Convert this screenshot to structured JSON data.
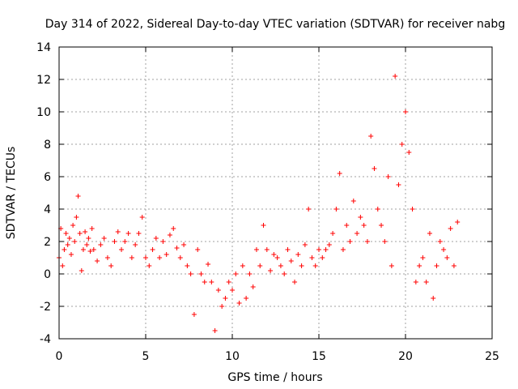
{
  "chart_data": {
    "type": "scatter",
    "title": "Day 314 of 2022, Sidereal Day-to-day VTEC variation (SDTVAR) for receiver nabg",
    "xlabel": "GPS time / hours",
    "ylabel": "SDTVAR / TECUs",
    "xlim": [
      0,
      25
    ],
    "ylim": [
      -4,
      14
    ],
    "xticks": [
      0,
      5,
      10,
      15,
      20,
      25
    ],
    "yticks": [
      -4,
      -2,
      0,
      2,
      4,
      6,
      8,
      10,
      12,
      14
    ],
    "grid": true,
    "marker": "plus",
    "color": "#ff0000",
    "series": [
      {
        "name": "nabg",
        "x": [
          0.0,
          0.1,
          0.2,
          0.3,
          0.4,
          0.5,
          0.6,
          0.7,
          0.8,
          0.9,
          1.0,
          1.1,
          1.2,
          1.3,
          1.4,
          1.5,
          1.6,
          1.7,
          1.8,
          1.9,
          2.0,
          2.2,
          2.4,
          2.6,
          2.8,
          3.0,
          3.2,
          3.4,
          3.6,
          3.8,
          4.0,
          4.2,
          4.4,
          4.6,
          4.8,
          5.0,
          5.2,
          5.4,
          5.6,
          5.8,
          6.0,
          6.2,
          6.4,
          6.6,
          6.8,
          7.0,
          7.2,
          7.4,
          7.6,
          7.8,
          8.0,
          8.2,
          8.4,
          8.6,
          8.8,
          9.0,
          9.2,
          9.4,
          9.6,
          9.8,
          10.0,
          10.2,
          10.4,
          10.6,
          10.8,
          11.0,
          11.2,
          11.4,
          11.6,
          11.8,
          12.0,
          12.2,
          12.4,
          12.6,
          12.8,
          13.0,
          13.2,
          13.4,
          13.6,
          13.8,
          14.0,
          14.2,
          14.4,
          14.6,
          14.8,
          15.0,
          15.2,
          15.4,
          15.6,
          15.8,
          16.0,
          16.2,
          16.4,
          16.6,
          16.8,
          17.0,
          17.2,
          17.4,
          17.6,
          17.8,
          18.0,
          18.2,
          18.4,
          18.6,
          18.8,
          19.0,
          19.2,
          19.4,
          19.6,
          19.8,
          20.0,
          20.2,
          20.4,
          20.6,
          20.8,
          21.0,
          21.2,
          21.4,
          21.6,
          21.8,
          22.0,
          22.2,
          22.4,
          22.6,
          22.8,
          23.0
        ],
        "y": [
          1.0,
          2.8,
          0.5,
          1.5,
          2.5,
          1.8,
          2.2,
          1.2,
          3.0,
          2.0,
          3.5,
          4.8,
          2.5,
          0.2,
          1.5,
          2.6,
          1.8,
          2.2,
          1.4,
          2.8,
          1.5,
          0.8,
          1.8,
          2.2,
          1.0,
          0.5,
          2.0,
          2.6,
          1.5,
          2.0,
          2.5,
          1.0,
          1.8,
          2.5,
          3.5,
          1.0,
          0.5,
          1.5,
          2.2,
          1.0,
          2.0,
          1.2,
          2.4,
          2.8,
          1.6,
          1.0,
          1.8,
          0.5,
          0.0,
          -2.5,
          1.5,
          0.0,
          -0.5,
          0.6,
          -0.5,
          -3.5,
          -1.0,
          -2.0,
          -1.5,
          -0.5,
          -1.0,
          0.0,
          -1.8,
          0.5,
          -1.5,
          0.0,
          -0.8,
          1.5,
          0.5,
          3.0,
          1.5,
          0.2,
          1.2,
          1.0,
          0.5,
          0.0,
          1.5,
          0.8,
          -0.5,
          1.2,
          0.5,
          1.8,
          4.0,
          1.0,
          0.5,
          1.5,
          1.0,
          1.5,
          1.8,
          2.5,
          4.0,
          6.2,
          1.5,
          3.0,
          2.0,
          4.5,
          2.5,
          3.5,
          3.0,
          2.0,
          8.5,
          6.5,
          4.0,
          3.0,
          2.0,
          6.0,
          0.5,
          12.2,
          5.5,
          8.0,
          10.0,
          7.5,
          4.0,
          -0.5,
          0.5,
          1.0,
          -0.5,
          2.5,
          -1.5,
          0.5,
          2.0,
          1.5,
          1.0,
          2.8,
          0.5,
          3.2
        ]
      }
    ]
  }
}
